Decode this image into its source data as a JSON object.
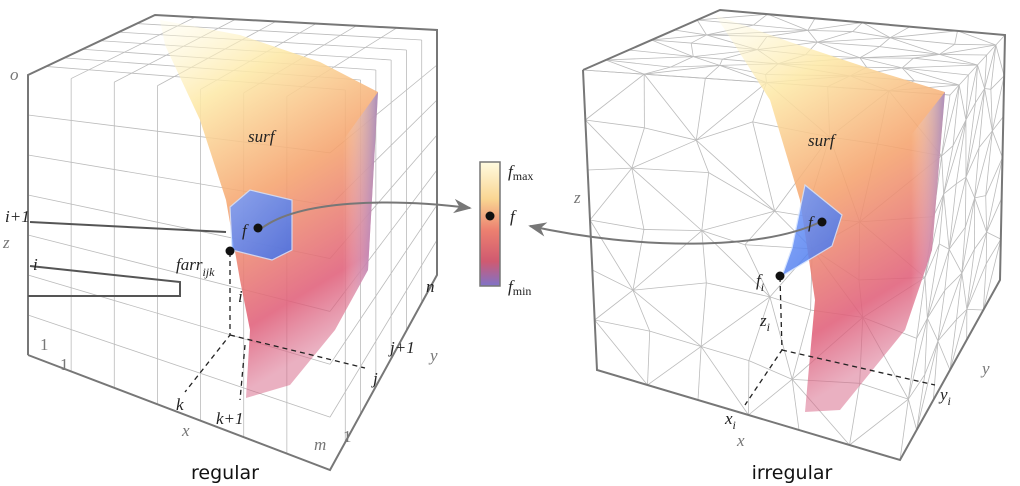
{
  "left": {
    "caption": "regular",
    "surface": "surf",
    "point": "f",
    "sample": {
      "base": "farr",
      "sub": "ijk"
    },
    "height": "i",
    "axis_labels": {
      "o": "o",
      "i_next": "i+1",
      "z": "z",
      "i": "i",
      "z_one": "1",
      "x_one": "1",
      "n": "n",
      "j_next": "j+1",
      "y": "y",
      "j": "j",
      "k": "k",
      "k_next": "k+1",
      "x": "x",
      "m": "m",
      "y_one": "1"
    }
  },
  "colorbar": {
    "max": {
      "base": "f",
      "sub": "max"
    },
    "mid": "f",
    "min": {
      "base": "f",
      "sub": "min"
    }
  },
  "right": {
    "caption": "irregular",
    "surface": "surf",
    "point": "f",
    "z": "z",
    "sample": {
      "base": "f",
      "sub": "i"
    },
    "z_i": {
      "base": "z",
      "sub": "i"
    },
    "y": "y",
    "y_i": {
      "base": "y",
      "sub": "i"
    },
    "x_i": {
      "base": "x",
      "sub": "i"
    },
    "x": "x"
  }
}
